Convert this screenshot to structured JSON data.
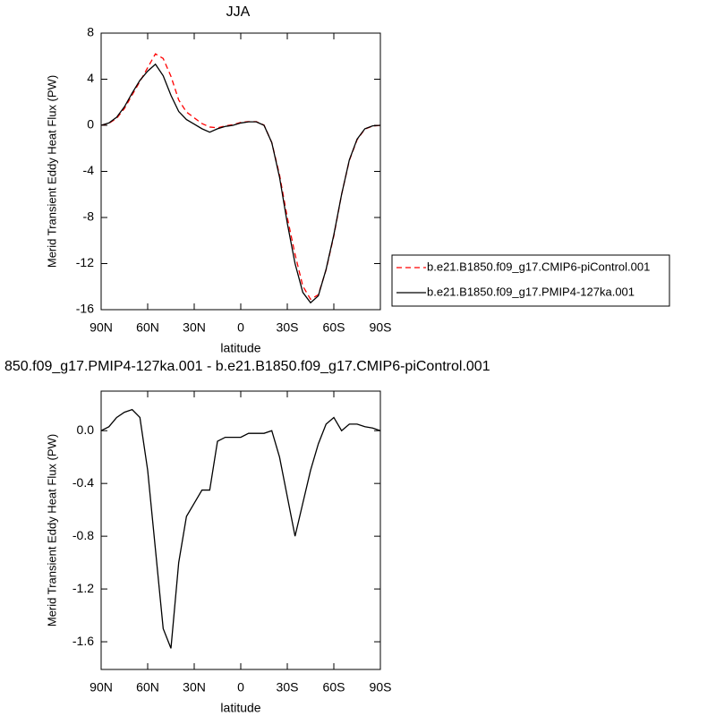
{
  "chart_data": [
    {
      "type": "line",
      "title": "JJA",
      "x_label": "latitude",
      "y_label": "Merid Transient Eddy Heat Flux (PW)",
      "x": [
        90,
        85,
        80,
        75,
        70,
        65,
        60,
        55,
        50,
        45,
        40,
        35,
        30,
        25,
        20,
        15,
        10,
        5,
        0,
        -5,
        -10,
        -15,
        -20,
        -25,
        -30,
        -35,
        -40,
        -45,
        -50,
        -55,
        -60,
        -65,
        -70,
        -75,
        -80,
        -85,
        -90
      ],
      "series": [
        {
          "name": "b.e21.B1850.f09_g17.CMIP6-piControl.001",
          "color": "#ff0000",
          "dashed": true,
          "values": [
            0,
            0.17,
            0.6,
            1.46,
            2.64,
            3.8,
            5.0,
            6.2,
            5.8,
            4.25,
            2.2,
            1.15,
            0.65,
            0.15,
            -0.15,
            -0.22,
            -0.05,
            0.05,
            0.25,
            0.32,
            0.32,
            0.02,
            -1.5,
            -4.3,
            -8.0,
            -11.2,
            -13.95,
            -15.1,
            -14.7,
            -12.55,
            -9.6,
            -6,
            -3.05,
            -1.25,
            -0.33,
            -0.07,
            0
          ]
        },
        {
          "name": "b.e21.B1850.f09_g17.PMIP4-127ka.001",
          "color": "#000000",
          "dashed": false,
          "values": [
            0,
            0.2,
            0.7,
            1.6,
            2.8,
            3.9,
            4.7,
            5.3,
            4.3,
            2.6,
            1.2,
            0.5,
            0.1,
            -0.3,
            -0.6,
            -0.3,
            -0.1,
            0,
            0.2,
            0.3,
            0.3,
            0,
            -1.5,
            -4.5,
            -8.5,
            -12,
            -14.5,
            -15.4,
            -14.8,
            -12.5,
            -9.5,
            -6,
            -3,
            -1.2,
            -0.3,
            -0.05,
            0
          ]
        }
      ],
      "xlim": [
        90,
        -90
      ],
      "xticks": [
        {
          "value": 90,
          "label": "90N"
        },
        {
          "value": 60,
          "label": "60N"
        },
        {
          "value": 30,
          "label": "30N"
        },
        0,
        {
          "value": -30,
          "label": "30S"
        },
        {
          "value": -60,
          "label": "60S"
        },
        {
          "value": -90,
          "label": "90S"
        }
      ],
      "ylim": [
        -16,
        8
      ],
      "yticks": [
        8,
        4,
        0,
        -4,
        -8,
        -12,
        -16
      ],
      "legend": "right"
    },
    {
      "type": "line",
      "title": "850.f09_g17.PMIP4-127ka.001 - b.e21.B1850.f09_g17.CMIP6-piControl.001",
      "x_label": "latitude",
      "y_label": "Merid Transient Eddy Heat Flux (PW)",
      "x": [
        90,
        85,
        80,
        75,
        70,
        65,
        60,
        55,
        50,
        45,
        40,
        35,
        30,
        25,
        20,
        15,
        10,
        5,
        0,
        -5,
        -10,
        -15,
        -20,
        -25,
        -30,
        -35,
        -40,
        -45,
        -50,
        -55,
        -60,
        -65,
        -70,
        -75,
        -80,
        -85,
        -90
      ],
      "series": [
        {
          "color": "#000000",
          "dashed": false,
          "values": [
            0,
            0.03,
            0.1,
            0.14,
            0.16,
            0.1,
            -0.3,
            -0.9,
            -1.5,
            -1.65,
            -1.0,
            -0.65,
            -0.55,
            -0.45,
            -0.45,
            -0.08,
            -0.05,
            -0.05,
            -0.05,
            -0.02,
            -0.02,
            -0.02,
            0,
            -0.2,
            -0.5,
            -0.8,
            -0.55,
            -0.3,
            -0.1,
            0.05,
            0.1,
            0,
            0.05,
            0.05,
            0.03,
            0.02,
            0
          ]
        }
      ],
      "xlim": [
        90,
        -90
      ],
      "xticks": [
        {
          "value": 90,
          "label": "90N"
        },
        {
          "value": 60,
          "label": "60N"
        },
        {
          "value": 30,
          "label": "30N"
        },
        0,
        {
          "value": -30,
          "label": "30S"
        },
        {
          "value": -60,
          "label": "60S"
        },
        {
          "value": -90,
          "label": "90S"
        }
      ],
      "ylim": [
        -1.81,
        0.3
      ],
      "yticks": [
        {
          "value": 0,
          "label": "0.0"
        },
        -0.4,
        -0.8,
        -1.2,
        -1.6
      ]
    }
  ]
}
